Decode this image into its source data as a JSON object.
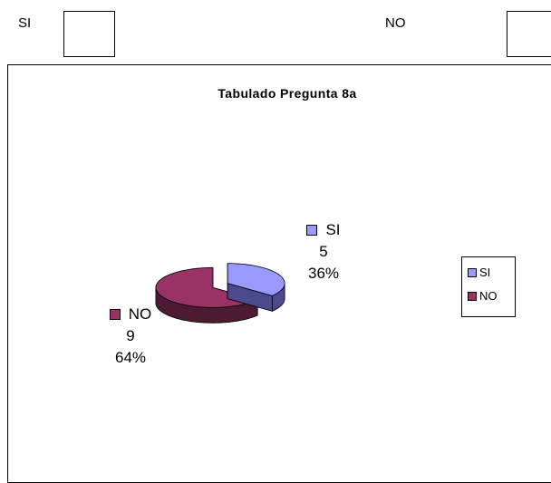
{
  "form": {
    "si_label": "SI",
    "no_label": "NO"
  },
  "colors": {
    "si_top": "#9999ff",
    "si_side": "#4a4a8c",
    "no_top": "#993366",
    "no_side": "#4d1a33"
  },
  "chart_data": {
    "type": "pie",
    "style": "3d-exploded",
    "title": "Tabulado Pregunta 8a",
    "categories": [
      "SI",
      "NO"
    ],
    "values": [
      5,
      9
    ],
    "percent_labels": [
      "36%",
      "64%"
    ],
    "value_labels": [
      "5",
      "9"
    ],
    "legend": {
      "position": "right",
      "entries": [
        "SI",
        "NO"
      ]
    }
  }
}
